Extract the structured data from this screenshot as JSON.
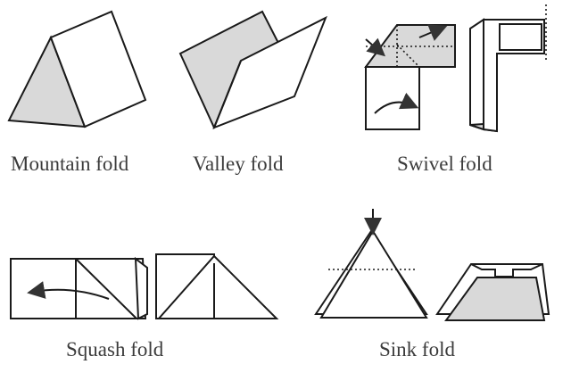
{
  "figures": [
    {
      "id": "mountain",
      "label": "Mountain fold",
      "icon": "mountain-fold-illustration"
    },
    {
      "id": "valley",
      "label": "Valley fold",
      "icon": "valley-fold-illustration"
    },
    {
      "id": "swivel",
      "label": "Swivel fold",
      "icon": "swivel-fold-illustration"
    },
    {
      "id": "squash",
      "label": "Squash fold",
      "icon": "squash-fold-illustration"
    },
    {
      "id": "sink",
      "label": "Sink fold",
      "icon": "sink-fold-illustration"
    }
  ],
  "colors": {
    "paper": "#ffffff",
    "shade": "#d9d9d9",
    "line": "#1a1a1a",
    "text": "#3b3b3b"
  }
}
